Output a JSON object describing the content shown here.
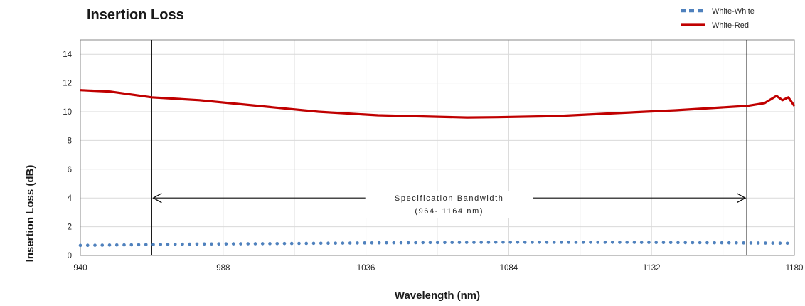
{
  "chart_data": {
    "type": "line",
    "title": "Insertion Loss",
    "xlabel": "Wavelength (nm)",
    "ylabel": "Insertion Loss (dB)",
    "xlim": [
      940,
      1180
    ],
    "ylim": [
      0,
      15
    ],
    "x_ticks": [
      940,
      988,
      1036,
      1084,
      1132,
      1180
    ],
    "y_ticks": [
      0,
      2,
      4,
      6,
      8,
      10,
      12,
      14
    ],
    "grid": true,
    "legend_position": "top-right",
    "series": [
      {
        "name": "White-White",
        "style": "dotted",
        "color": "#4f81bd",
        "x": [
          940,
          960,
          980,
          1000,
          1020,
          1040,
          1060,
          1080,
          1100,
          1120,
          1140,
          1160,
          1180
        ],
        "y": [
          0.7,
          0.75,
          0.8,
          0.82,
          0.85,
          0.88,
          0.9,
          0.92,
          0.92,
          0.92,
          0.9,
          0.88,
          0.85
        ]
      },
      {
        "name": "White-Red",
        "style": "solid",
        "color": "#c00000",
        "x": [
          940,
          950,
          964,
          980,
          1000,
          1020,
          1040,
          1060,
          1070,
          1080,
          1100,
          1120,
          1140,
          1160,
          1164,
          1170,
          1174,
          1176,
          1178,
          1180
        ],
        "y": [
          11.5,
          11.4,
          11.0,
          10.8,
          10.4,
          10.0,
          9.75,
          9.65,
          9.6,
          9.62,
          9.7,
          9.9,
          10.1,
          10.35,
          10.4,
          10.6,
          11.1,
          10.8,
          11.0,
          10.4
        ]
      }
    ],
    "annotations": [
      {
        "text": "Specification Bandwidth",
        "type": "double-arrow",
        "x_start": 964,
        "x_end": 1164,
        "y": 4
      },
      {
        "text": "(964- 1164 nm)"
      }
    ],
    "vertical_lines": [
      964,
      1164
    ]
  }
}
